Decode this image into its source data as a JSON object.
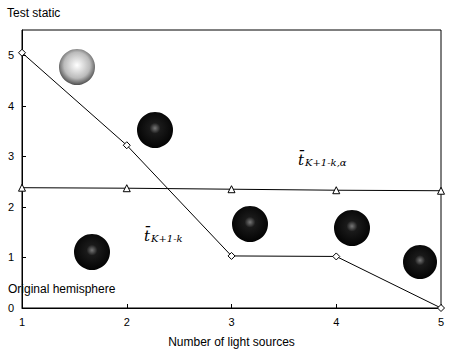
{
  "chart_data": {
    "type": "line",
    "ylabel": "Test static",
    "xlabel": "Number of light sources",
    "x": [
      1,
      2,
      3,
      4,
      5
    ],
    "series": [
      {
        "values": [
          5.05,
          3.22,
          1.03,
          1.02,
          0
        ],
        "color": "#000000",
        "marker": "diamond",
        "line_style": "solid"
      },
      {
        "values": [
          2.38,
          2.37,
          2.35,
          2.33,
          2.32
        ],
        "color": "#000000",
        "marker": "triangle",
        "line_style": "solid"
      }
    ],
    "annotations": [
      {
        "text": "t̄",
        "subscript": "K+1-k,α"
      },
      {
        "text": "t̄",
        "subscript": "K+1-k"
      },
      {
        "text": "Original hemisphere"
      }
    ],
    "xlim": [
      1,
      5
    ],
    "xticks": [
      1,
      2,
      3,
      4,
      5
    ],
    "ylim": [
      0,
      5.5
    ],
    "yticks": [
      0,
      1,
      2,
      3,
      4,
      5
    ],
    "grid": false
  }
}
